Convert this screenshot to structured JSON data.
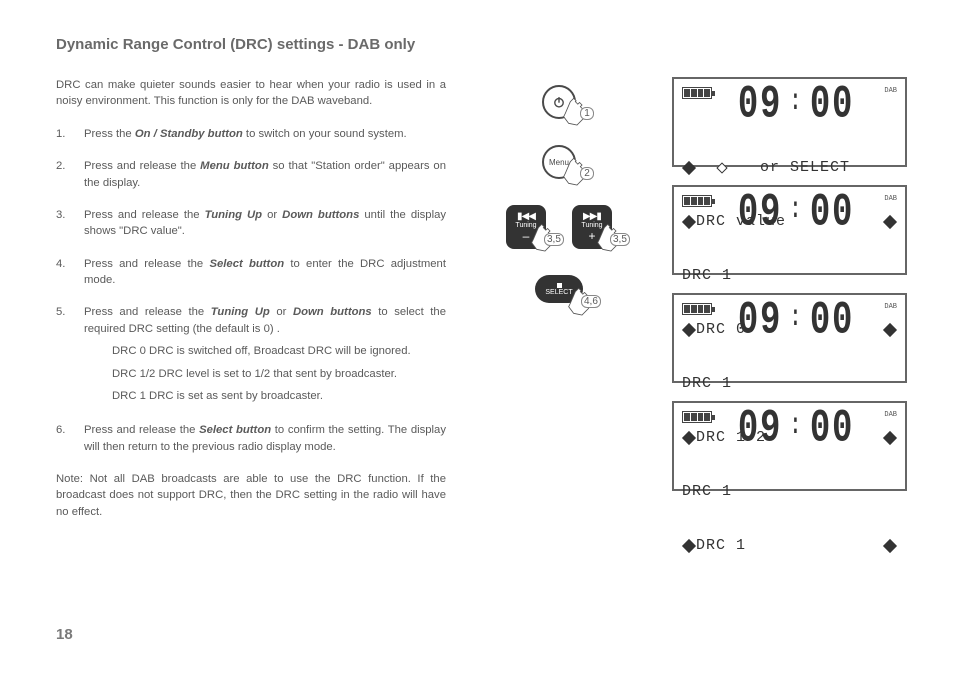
{
  "title": "Dynamic Range Control (DRC) settings - DAB only",
  "intro": "DRC can make quieter sounds easier to hear when your radio is used in a noisy environment.  This function is only for the DAB waveband.",
  "steps": [
    {
      "n": "1.",
      "pre": "Press the ",
      "bold": "On / Standby button",
      "post": " to switch on your sound system."
    },
    {
      "n": "2.",
      "pre": "Press and release the ",
      "bold": "Menu button",
      "post": " so that \"Station order\" appears on the display."
    },
    {
      "n": "3.",
      "pre": "Press and release the ",
      "bold": "Tuning Up",
      "mid": " or ",
      "bold2": "Down buttons",
      "post": " until the display shows \"DRC value\"."
    },
    {
      "n": "4.",
      "pre": "Press and release the ",
      "bold": "Select button",
      "post": " to enter the DRC adjustment mode."
    },
    {
      "n": "5.",
      "pre": "Press and release the ",
      "bold": "Tuning Up",
      "mid": " or ",
      "bold2": "Down buttons",
      "post": " to select the required DRC setting (the default is 0) .",
      "subs": [
        "DRC 0  DRC is switched off, Broadcast DRC will be ignored.",
        "DRC 1/2 DRC level is set to 1/2 that sent by broadcaster.",
        "DRC 1  DRC is set as sent by broadcaster."
      ]
    },
    {
      "n": "6.",
      "pre": "Press and release the ",
      "bold": "Select button",
      "post": " to confirm the setting. The display will then return to the previous radio display mode."
    }
  ],
  "note": "Note: Not all DAB broadcasts are able to use the DRC function. If the broadcast does not support DRC, then the DRC setting in the radio will have no effect.",
  "page_number": "18",
  "buttons": {
    "power_callout": "1",
    "menu_label": "Menu",
    "menu_callout": "2",
    "tuning_label": "Tuning",
    "tuning_minus": "–",
    "tuning_plus": "+",
    "tuning_callout": "3,5",
    "select_label": "SELECT",
    "select_callout": "4,6"
  },
  "lcd": {
    "time": "09:00",
    "mode": "DAB",
    "s1_l1": "   or SELECT",
    "s1_l2": "DRC value",
    "s2_l1": "DRC 1",
    "s2_l2": "DRC 0",
    "s3_l1": "DRC 1",
    "s3_l2": "DRC 1/2",
    "s4_l1": "DRC 1",
    "s4_l2": "DRC 1"
  }
}
